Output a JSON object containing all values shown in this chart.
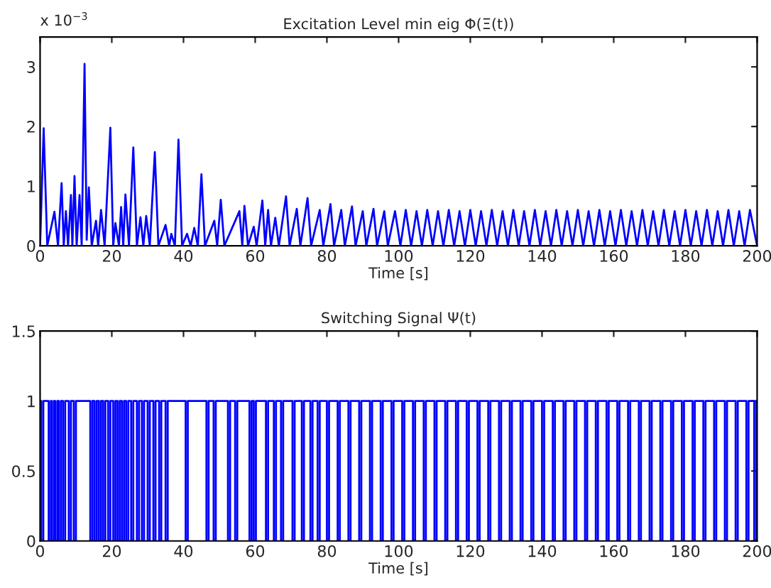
{
  "chart_data": [
    {
      "type": "line",
      "title": "Excitation Level min eig Φ(Ξ(t))",
      "xlabel": "Time [s]",
      "color": "#0000ff",
      "xlim": [
        0,
        200
      ],
      "xticks": [
        0,
        20,
        40,
        60,
        80,
        100,
        120,
        140,
        160,
        180,
        200
      ],
      "ylim": [
        0,
        3.5
      ],
      "yticks": [
        0,
        1,
        2,
        3
      ],
      "annotations": [
        "x 10$^{−3}$"
      ],
      "x": [
        0,
        1,
        2,
        4,
        5,
        6,
        6.6,
        7.2,
        7.8,
        8.6,
        9,
        9.6,
        10.2,
        11,
        11.6,
        12.4,
        13,
        13.6,
        14.4,
        15.6,
        16.2,
        17,
        18,
        19.6,
        20.4,
        21,
        22,
        22.6,
        23.2,
        23.8,
        24.8,
        26,
        27,
        28,
        28.8,
        29.6,
        30.6,
        32,
        33,
        35,
        36,
        36.6,
        37.6,
        38.6,
        39.6,
        41,
        42,
        43,
        44,
        45,
        46,
        48.6,
        49.4,
        50.4,
        51.4,
        55.6,
        56.4,
        57,
        58,
        59.6,
        60.4,
        62,
        62.8,
        63.6,
        64.4,
        65.6,
        66.6,
        68.6,
        69.6,
        71.6,
        72.6,
        74.6,
        75.6,
        78,
        79,
        81,
        82,
        84,
        85,
        87,
        88,
        90,
        91,
        93,
        94,
        96,
        97,
        99,
        100.5,
        102,
        103.5,
        105,
        106.5,
        108,
        109.5,
        111,
        112.5,
        114,
        115.5,
        117,
        118.5,
        120,
        121.5,
        123,
        124.5,
        126,
        127.5,
        129,
        130.5,
        132,
        133.5,
        135,
        136.5,
        138,
        139.5,
        141,
        142.5,
        144,
        145.5,
        147,
        148.5,
        150,
        151.5,
        153,
        154.5,
        156,
        157.5,
        159,
        160.5,
        162,
        163.5,
        165,
        166.5,
        168,
        169.5,
        171,
        172.5,
        174,
        175.5,
        177,
        178.5,
        180,
        181.5,
        183,
        184.5,
        186,
        187.5,
        189,
        190.5,
        192,
        193.5,
        195,
        196.5,
        198,
        200
      ],
      "values": [
        0,
        1.97,
        0,
        0.57,
        0,
        1.05,
        0,
        0.58,
        0,
        0.85,
        0,
        1.17,
        0,
        0.85,
        0,
        3.05,
        0.1,
        0.98,
        0,
        0.42,
        0,
        0.6,
        0,
        1.98,
        0,
        0.38,
        0,
        0.65,
        0,
        0.86,
        0,
        1.65,
        0,
        0.48,
        0,
        0.5,
        0,
        1.57,
        0,
        0.35,
        0,
        0.2,
        0,
        1.78,
        0,
        0.2,
        0,
        0.3,
        0,
        1.2,
        0,
        0.42,
        0,
        0.77,
        0,
        0.58,
        0,
        0.67,
        0,
        0.32,
        0,
        0.76,
        0,
        0.6,
        0,
        0.47,
        0,
        0.83,
        0,
        0.62,
        0,
        0.8,
        0,
        0.6,
        0,
        0.7,
        0,
        0.6,
        0,
        0.66,
        0,
        0.58,
        0,
        0.62,
        0,
        0.58,
        0,
        0.58,
        0,
        0.6,
        0,
        0.58,
        0,
        0.6,
        0,
        0.58,
        0,
        0.6,
        0,
        0.58,
        0,
        0.6,
        0,
        0.58,
        0,
        0.6,
        0,
        0.58,
        0,
        0.6,
        0,
        0.58,
        0,
        0.6,
        0,
        0.58,
        0,
        0.6,
        0,
        0.58,
        0,
        0.6,
        0,
        0.58,
        0,
        0.6,
        0,
        0.58,
        0,
        0.6,
        0,
        0.58,
        0,
        0.6,
        0,
        0.58,
        0,
        0.6,
        0,
        0.58,
        0,
        0.6,
        0,
        0.58,
        0,
        0.6,
        0,
        0.58,
        0,
        0.6,
        0,
        0.58,
        0,
        0.6,
        0
      ]
    },
    {
      "type": "step",
      "title": "Switching Signal Ψ(t)",
      "xlabel": "Time [s]",
      "color": "#0000ff",
      "xlim": [
        0,
        200
      ],
      "xticks": [
        0,
        20,
        40,
        60,
        80,
        100,
        120,
        140,
        160,
        180,
        200
      ],
      "ylim": [
        0,
        1.5
      ],
      "yticks": [
        0,
        0.5,
        1,
        1.5
      ],
      "x": [
        0,
        0.3,
        0.9,
        2.4,
        3.0,
        3.2,
        3.8,
        4.2,
        4.8,
        5.2,
        5.8,
        6.4,
        7.0,
        8,
        8.6,
        9.4,
        10,
        14,
        14.6,
        15.2,
        15.8,
        16.4,
        17,
        17.6,
        18.2,
        19,
        19.6,
        20.4,
        21,
        21.6,
        22.2,
        22.8,
        23.4,
        24,
        24.6,
        25.4,
        26,
        27,
        27.6,
        28.4,
        29,
        30,
        30.6,
        31.6,
        32.2,
        33.2,
        33.8,
        35,
        35.6,
        40.6,
        41.2,
        46.4,
        47,
        48.4,
        49,
        52.4,
        53,
        54.4,
        55,
        58.4,
        59,
        59.6,
        60.2,
        63,
        63.6,
        65.2,
        65.8,
        67.2,
        67.8,
        70.4,
        71,
        73,
        73.6,
        75.4,
        76,
        77.4,
        78,
        80,
        80.6,
        83,
        83.6,
        86,
        86.6,
        89,
        89.6,
        92,
        92.6,
        95,
        95.6,
        98,
        98.6,
        101,
        101.6,
        104,
        104.6,
        107,
        107.6,
        110,
        110.6,
        113,
        113.6,
        116,
        116.6,
        119,
        119.6,
        122,
        122.6,
        125,
        125.6,
        128,
        128.6,
        131,
        131.6,
        134,
        134.6,
        137,
        137.6,
        140,
        140.6,
        143,
        143.6,
        146,
        146.6,
        149,
        149.6,
        152,
        152.6,
        155,
        155.6,
        158,
        158.6,
        161,
        161.6,
        164,
        164.6,
        167,
        167.6,
        170,
        170.6,
        173,
        173.6,
        176,
        176.6,
        179,
        179.6,
        182,
        182.6,
        185,
        185.6,
        188,
        188.6,
        191,
        191.6,
        194,
        194.6,
        197,
        197.6,
        199.2,
        199.8,
        200
      ],
      "values": [
        1,
        0,
        1,
        0,
        1,
        0,
        1,
        0,
        1,
        0,
        1,
        0,
        1,
        0,
        1,
        0,
        1,
        0,
        1,
        0,
        1,
        0,
        1,
        0,
        1,
        0,
        1,
        0,
        1,
        0,
        1,
        0,
        1,
        0,
        1,
        0,
        1,
        0,
        1,
        0,
        1,
        0,
        1,
        0,
        1,
        0,
        1,
        0,
        1,
        0,
        1,
        0,
        1,
        0,
        1,
        0,
        1,
        0,
        1,
        0,
        1,
        0,
        1,
        0,
        1,
        0,
        1,
        0,
        1,
        0,
        1,
        0,
        1,
        0,
        1,
        0,
        1,
        0,
        1,
        0,
        1,
        0,
        1,
        0,
        1,
        0,
        1,
        0,
        1,
        0,
        1,
        0,
        1,
        0,
        1,
        0,
        1,
        0,
        1,
        0,
        1,
        0,
        1,
        0,
        1,
        0,
        1,
        0,
        1,
        0,
        1,
        0,
        1,
        0,
        1,
        0,
        1,
        0,
        1,
        0,
        1,
        0,
        1,
        0,
        1,
        0,
        1,
        0,
        1,
        0,
        1,
        0,
        1,
        0,
        1,
        0,
        1,
        0,
        1,
        0,
        1,
        0,
        1,
        0,
        1,
        0,
        1,
        0,
        1,
        0,
        1,
        0,
        1,
        0,
        1,
        0,
        1,
        0,
        1,
        1
      ]
    }
  ]
}
